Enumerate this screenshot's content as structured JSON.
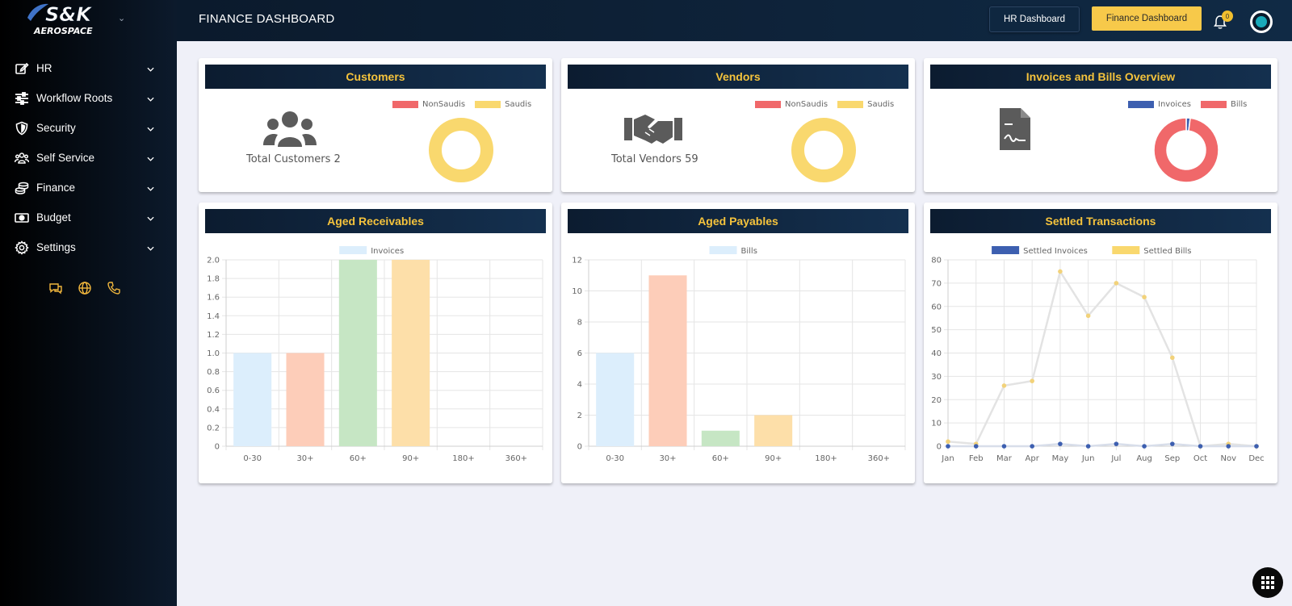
{
  "brand": {
    "logo_line1": "S&K",
    "logo_line2": "AEROSPACE"
  },
  "sidebar": {
    "items": [
      {
        "label": "HR",
        "icon": "edit-icon"
      },
      {
        "label": "Workflow Roots",
        "icon": "sliders-icon"
      },
      {
        "label": "Security",
        "icon": "shield-icon"
      },
      {
        "label": "Self Service",
        "icon": "users-icon"
      },
      {
        "label": "Finance",
        "icon": "coins-icon"
      },
      {
        "label": "Budget",
        "icon": "money-icon"
      },
      {
        "label": "Settings",
        "icon": "gear-icon"
      }
    ],
    "quick_icons": [
      "chat-icon",
      "globe-icon",
      "phone-icon"
    ]
  },
  "header": {
    "title": "FINANCE DASHBOARD",
    "hr_button": "HR Dashboard",
    "finance_button": "Finance Dashboard",
    "notification_count": "0"
  },
  "colors": {
    "accent": "#f7c94a",
    "navy": "#0c1c30",
    "red": "#f0686a",
    "yellow": "#f9d86e",
    "blue": "#3d5fb0"
  },
  "cards": {
    "customers": {
      "title": "Customers",
      "stat_label": "Total Customers 2",
      "legend": [
        "NonSaudis",
        "Saudis"
      ]
    },
    "vendors": {
      "title": "Vendors",
      "stat_label": "Total Vendors 59",
      "legend": [
        "NonSaudis",
        "Saudis"
      ]
    },
    "overview": {
      "title": "Invoices and Bills Overview",
      "legend": [
        "Invoices",
        "Bills"
      ]
    },
    "receivables": {
      "title": "Aged Receivables",
      "legend": "Invoices"
    },
    "payables": {
      "title": "Aged Payables",
      "legend": "Bills"
    },
    "settled": {
      "title": "Settled Transactions",
      "legend": [
        "Settled Invoices",
        "Settled Bills"
      ]
    }
  },
  "chart_data": [
    {
      "id": "customers",
      "type": "pie",
      "style": "doughnut",
      "labels": [
        "NonSaudis",
        "Saudis"
      ],
      "values": [
        0,
        2
      ],
      "colors": [
        "#f0686a",
        "#f9d86e"
      ]
    },
    {
      "id": "vendors",
      "type": "pie",
      "style": "doughnut",
      "labels": [
        "NonSaudis",
        "Saudis"
      ],
      "values": [
        0,
        59
      ],
      "colors": [
        "#f0686a",
        "#f9d86e"
      ]
    },
    {
      "id": "overview",
      "type": "pie",
      "style": "doughnut",
      "labels": [
        "Invoices",
        "Bills"
      ],
      "values": [
        2,
        98
      ],
      "colors": [
        "#3d5fb0",
        "#f0686a"
      ]
    },
    {
      "id": "receivables",
      "type": "bar",
      "categories": [
        "0-30",
        "30+",
        "60+",
        "90+",
        "180+",
        "360+"
      ],
      "series": [
        {
          "name": "Invoices",
          "values": [
            1,
            1,
            2,
            2,
            0,
            0
          ]
        }
      ],
      "ylim": [
        0,
        2
      ],
      "yticks": [
        "0",
        "0.2",
        "0.4",
        "0.6",
        "0.8",
        "1.0",
        "1.2",
        "1.4",
        "1.6",
        "1.8",
        "2.0"
      ],
      "bar_colors": [
        "#dceefc",
        "#fdcdb9",
        "#c6e6c4",
        "#fddfa9",
        "#e8e8e8",
        "#e8e8e8"
      ]
    },
    {
      "id": "payables",
      "type": "bar",
      "categories": [
        "0-30",
        "30+",
        "60+",
        "90+",
        "180+",
        "360+"
      ],
      "series": [
        {
          "name": "Bills",
          "values": [
            6,
            11,
            1,
            2,
            0,
            0
          ]
        }
      ],
      "ylim": [
        0,
        12
      ],
      "yticks": [
        "0",
        "2",
        "4",
        "6",
        "8",
        "10",
        "12"
      ],
      "bar_colors": [
        "#dceefc",
        "#fdcdb9",
        "#c6e6c4",
        "#fddfa9",
        "#e8e8e8",
        "#e8e8e8"
      ]
    },
    {
      "id": "settled",
      "type": "line",
      "categories": [
        "Jan",
        "Feb",
        "Mar",
        "Apr",
        "May",
        "Jun",
        "Jul",
        "Aug",
        "Sep",
        "Oct",
        "Nov",
        "Dec"
      ],
      "series": [
        {
          "name": "Settled Invoices",
          "values": [
            0,
            0,
            0,
            0,
            1,
            0,
            1,
            0,
            1,
            0,
            0,
            0
          ],
          "color": "#3d5fb0"
        },
        {
          "name": "Settled Bills",
          "values": [
            2,
            1,
            26,
            28,
            75,
            56,
            70,
            64,
            38,
            0,
            1,
            0
          ],
          "color": "#f2d27a"
        }
      ],
      "ylim": [
        0,
        80
      ],
      "yticks": [
        "0",
        "10",
        "20",
        "30",
        "40",
        "50",
        "60",
        "70",
        "80"
      ]
    }
  ]
}
